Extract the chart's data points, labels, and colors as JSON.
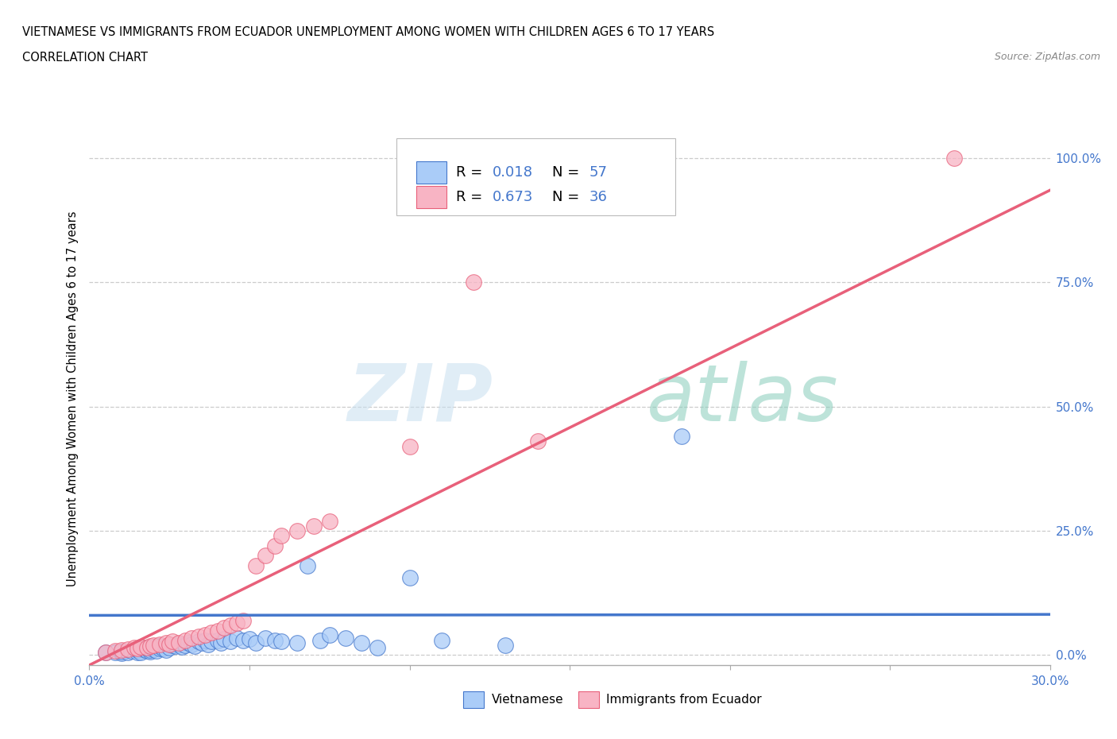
{
  "title_line1": "VIETNAMESE VS IMMIGRANTS FROM ECUADOR UNEMPLOYMENT AMONG WOMEN WITH CHILDREN AGES 6 TO 17 YEARS",
  "title_line2": "CORRELATION CHART",
  "source_text": "Source: ZipAtlas.com",
  "ylabel": "Unemployment Among Women with Children Ages 6 to 17 years",
  "x_min": 0.0,
  "x_max": 0.3,
  "y_min": -0.02,
  "y_max": 1.05,
  "y_ticks": [
    0.0,
    0.25,
    0.5,
    0.75,
    1.0
  ],
  "y_tick_labels": [
    "0.0%",
    "25.0%",
    "50.0%",
    "75.0%",
    "100.0%"
  ],
  "color_vietnamese": "#aaccf8",
  "color_ecuador": "#f8b4c4",
  "color_line_vietnamese": "#4477cc",
  "color_line_ecuador": "#e8607a",
  "watermark_zip": "ZIP",
  "watermark_atlas": "atlas",
  "vietnamese_x": [
    0.005,
    0.008,
    0.01,
    0.01,
    0.012,
    0.013,
    0.015,
    0.015,
    0.016,
    0.017,
    0.018,
    0.018,
    0.019,
    0.019,
    0.02,
    0.02,
    0.021,
    0.022,
    0.022,
    0.023,
    0.024,
    0.025,
    0.026,
    0.027,
    0.028,
    0.029,
    0.03,
    0.031,
    0.032,
    0.033,
    0.034,
    0.035,
    0.036,
    0.037,
    0.038,
    0.04,
    0.041,
    0.042,
    0.044,
    0.046,
    0.048,
    0.05,
    0.052,
    0.055,
    0.058,
    0.06,
    0.065,
    0.068,
    0.072,
    0.075,
    0.08,
    0.085,
    0.09,
    0.1,
    0.11,
    0.13,
    0.185
  ],
  "vietnamese_y": [
    0.005,
    0.006,
    0.004,
    0.007,
    0.005,
    0.008,
    0.006,
    0.01,
    0.005,
    0.012,
    0.008,
    0.015,
    0.007,
    0.01,
    0.012,
    0.016,
    0.009,
    0.014,
    0.018,
    0.013,
    0.01,
    0.015,
    0.02,
    0.018,
    0.022,
    0.016,
    0.02,
    0.025,
    0.022,
    0.018,
    0.028,
    0.025,
    0.03,
    0.022,
    0.028,
    0.03,
    0.025,
    0.032,
    0.028,
    0.035,
    0.03,
    0.032,
    0.025,
    0.035,
    0.03,
    0.028,
    0.025,
    0.18,
    0.03,
    0.04,
    0.035,
    0.025,
    0.015,
    0.155,
    0.03,
    0.02,
    0.44
  ],
  "ecuador_x": [
    0.005,
    0.008,
    0.01,
    0.012,
    0.014,
    0.015,
    0.016,
    0.018,
    0.019,
    0.02,
    0.022,
    0.024,
    0.025,
    0.026,
    0.028,
    0.03,
    0.032,
    0.034,
    0.036,
    0.038,
    0.04,
    0.042,
    0.044,
    0.046,
    0.048,
    0.052,
    0.055,
    0.058,
    0.06,
    0.065,
    0.07,
    0.075,
    0.1,
    0.12,
    0.14,
    0.27
  ],
  "ecuador_y": [
    0.005,
    0.008,
    0.01,
    0.012,
    0.015,
    0.014,
    0.016,
    0.015,
    0.018,
    0.02,
    0.022,
    0.025,
    0.022,
    0.028,
    0.025,
    0.03,
    0.035,
    0.038,
    0.04,
    0.045,
    0.048,
    0.055,
    0.06,
    0.065,
    0.07,
    0.18,
    0.2,
    0.22,
    0.24,
    0.25,
    0.26,
    0.27,
    0.42,
    0.75,
    0.43,
    1.0
  ],
  "viet_trend_x": [
    0.0,
    0.3
  ],
  "viet_trend_y": [
    0.08,
    0.082
  ],
  "ecuador_trend_x": [
    0.0,
    0.3
  ],
  "ecuador_trend_y": [
    -0.02,
    0.935
  ]
}
